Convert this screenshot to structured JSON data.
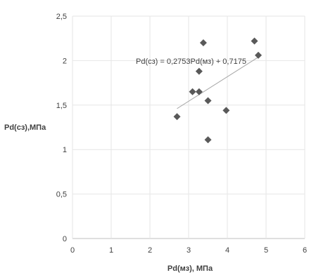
{
  "chart_data": {
    "type": "scatter",
    "title": "",
    "xlabel": "Pd(мз), МПа",
    "ylabel": "Pd(сз),МПа",
    "xlim": [
      0,
      6
    ],
    "ylim": [
      0,
      2.5
    ],
    "x_ticks": [
      "0",
      "1",
      "2",
      "3",
      "4",
      "5",
      "6"
    ],
    "y_ticks": [
      "0",
      "0,5",
      "1",
      "1,5",
      "2",
      "2,5"
    ],
    "grid": true,
    "legend": "none",
    "points": [
      {
        "x": 2.7,
        "y": 1.37
      },
      {
        "x": 3.1,
        "y": 1.65
      },
      {
        "x": 3.27,
        "y": 1.65
      },
      {
        "x": 3.27,
        "y": 1.88
      },
      {
        "x": 3.38,
        "y": 2.2
      },
      {
        "x": 3.5,
        "y": 1.55
      },
      {
        "x": 3.5,
        "y": 1.11
      },
      {
        "x": 3.97,
        "y": 1.44
      },
      {
        "x": 4.7,
        "y": 2.22
      },
      {
        "x": 4.8,
        "y": 2.06
      }
    ],
    "trendline": {
      "type": "linear",
      "slope": 0.2753,
      "intercept": 0.7175,
      "x_range": [
        2.7,
        4.8
      ],
      "equation_label": "Pd(сз) = 0,2753Pd(мз) + 0,7175"
    },
    "colors": {
      "marker": "#595959",
      "trendline": "#a6a6a6",
      "gridline": "#e6e6e6"
    }
  }
}
